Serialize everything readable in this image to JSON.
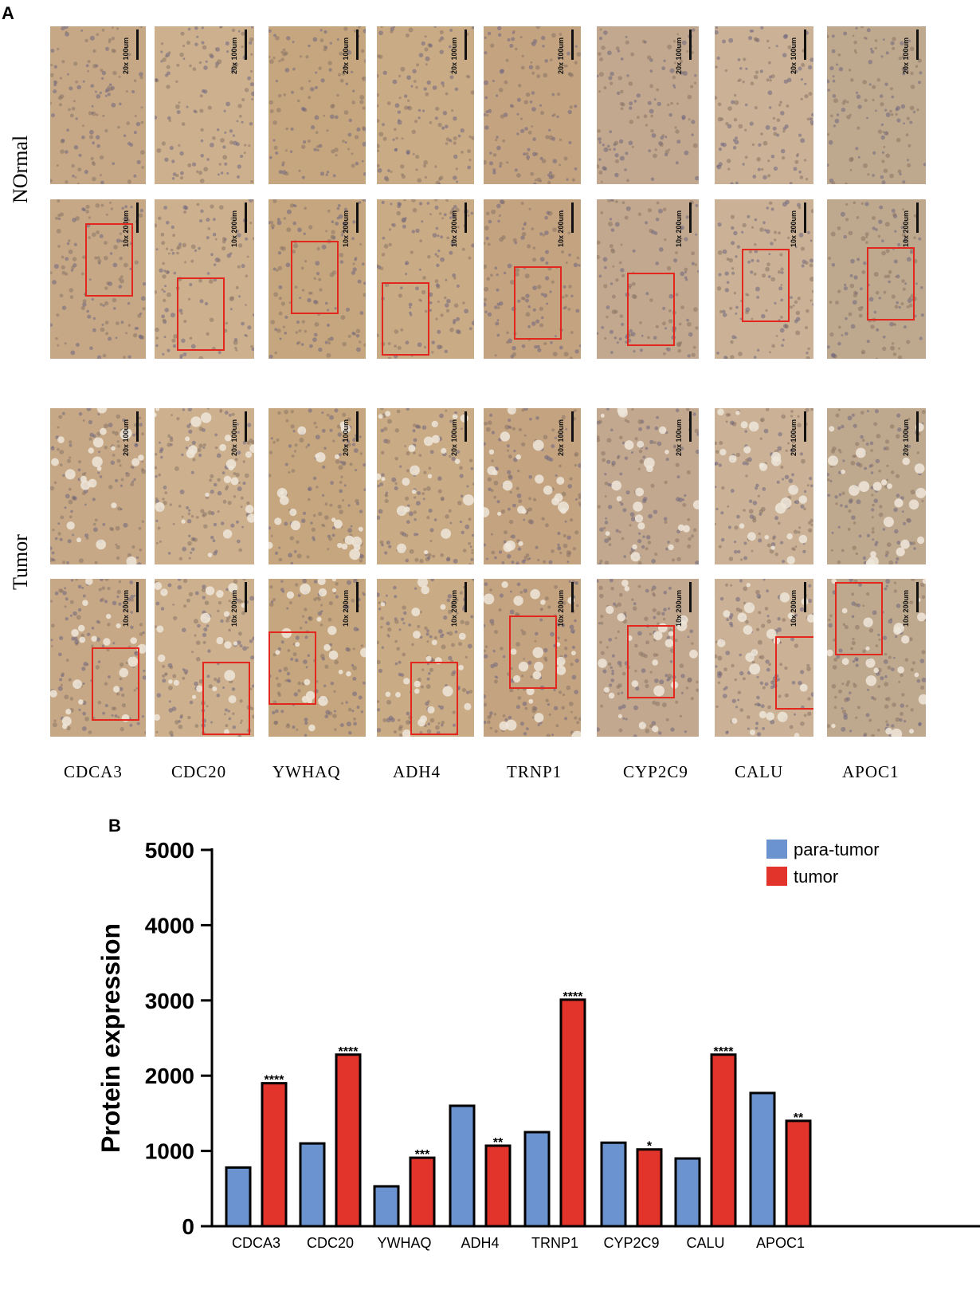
{
  "panel_a": {
    "label": "A",
    "row_labels": {
      "normal": "NOrmal",
      "tumor": "Tumor"
    },
    "genes": [
      "CDCA3",
      "CDC20",
      "YWHAQ",
      "ADH4",
      "TRNP1",
      "CYP2C9",
      "CALU",
      "APOC1"
    ],
    "scale_20x": "20x 100um",
    "scale_10x": "10x 200um",
    "tile_colors": [
      "#c6a887",
      "#cdb18f",
      "#c5a67f",
      "#c9ab86",
      "#c4a380",
      "#c2a88e",
      "#cbb296",
      "#bfa98e"
    ]
  },
  "chart_data": {
    "panel_label": "B",
    "type": "bar",
    "categories": [
      "CDCA3",
      "CDC20",
      "YWHAQ",
      "ADH4",
      "TRNP1",
      "CYP2C9",
      "CALU",
      "APOC1"
    ],
    "series": [
      {
        "name": "para-tumor",
        "color": "#6b93cf",
        "values": [
          780,
          1100,
          530,
          1600,
          1250,
          1110,
          900,
          1770
        ]
      },
      {
        "name": "tumor",
        "color": "#e3342b",
        "values": [
          1900,
          2280,
          910,
          1070,
          3010,
          1020,
          2280,
          1400
        ]
      }
    ],
    "significance": [
      "****",
      "****",
      "***",
      "**",
      "****",
      "*",
      "****",
      "**"
    ],
    "ylabel": "Protein expression",
    "xlabel": "",
    "ylim": [
      0,
      5000
    ],
    "yticks": [
      "0",
      "1000",
      "2000",
      "3000",
      "4000",
      "5000"
    ],
    "legend_position": "top-right",
    "grid": false
  }
}
